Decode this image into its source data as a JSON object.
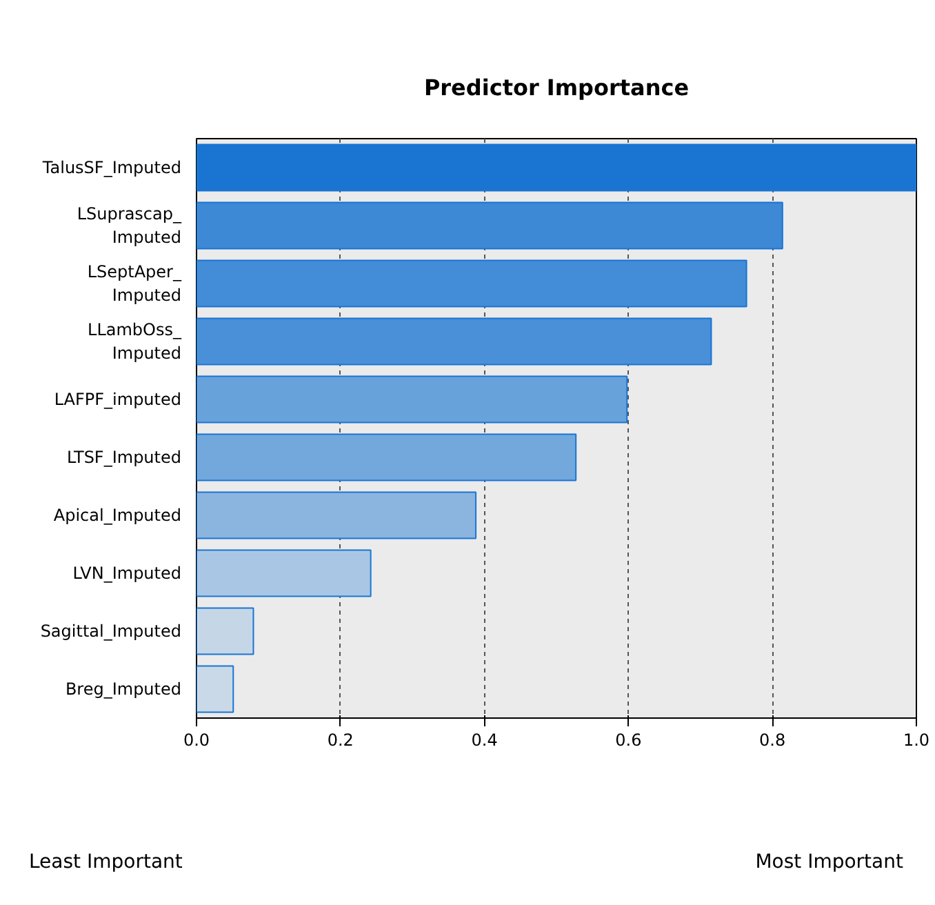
{
  "chart_data": {
    "type": "bar",
    "orientation": "horizontal",
    "title": "Predictor Importance",
    "categories": [
      "TalusSF_Imputed",
      "LSuprascap_\nImputed",
      "LSeptAper_\nImputed",
      "LLambOss_\nImputed",
      "LAFPF_imputed",
      "LTSF_Imputed",
      "Apical_Imputed",
      "LVN_Imputed",
      "Sagittal_Imputed",
      "Breg_Imputed"
    ],
    "values": [
      1.0,
      0.814,
      0.764,
      0.715,
      0.598,
      0.527,
      0.388,
      0.242,
      0.079,
      0.051
    ],
    "colors": [
      "#1a75d2",
      "#3d89d6",
      "#438cd7",
      "#4a90d9",
      "#68a2db",
      "#72a8dc",
      "#8bb5de",
      "#a9c7e4",
      "#c5d7e6",
      "#c9d9e7"
    ],
    "xlim": [
      0,
      1.0
    ],
    "xticks": [
      {
        "value": 0,
        "label": "0.0"
      },
      0.2,
      0.4,
      0.6,
      0.8,
      {
        "value": 1,
        "label": "1.0"
      }
    ],
    "grid": "x",
    "annotations": [
      "Least Important",
      "Most Important"
    ]
  }
}
